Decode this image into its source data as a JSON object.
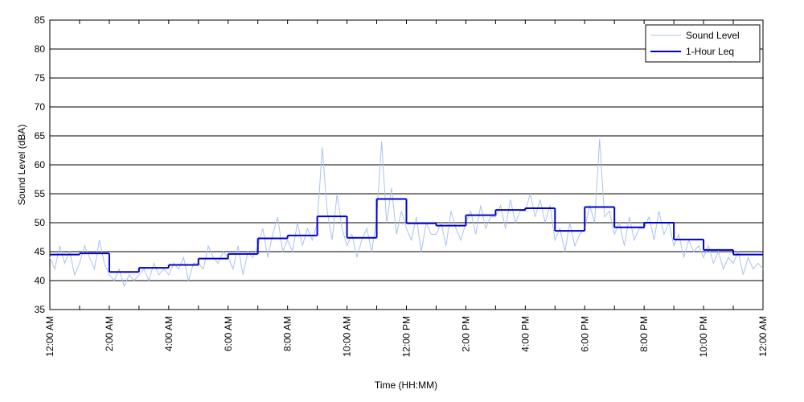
{
  "chart_data": {
    "type": "line",
    "xlabel": "Time (HH:MM)",
    "ylabel": "Sound Level (dBA)",
    "xlim": [
      0,
      1440
    ],
    "ylim": [
      35,
      85
    ],
    "yticks": [
      35,
      40,
      45,
      50,
      55,
      60,
      65,
      70,
      75,
      80,
      85
    ],
    "xticks": [
      {
        "value": 0,
        "label": "12:00 AM"
      },
      {
        "value": 120,
        "label": "2:00 AM"
      },
      {
        "value": 240,
        "label": "4:00 AM"
      },
      {
        "value": 360,
        "label": "6:00 AM"
      },
      {
        "value": 480,
        "label": "8:00 AM"
      },
      {
        "value": 600,
        "label": "10:00 AM"
      },
      {
        "value": 720,
        "label": "12:00 PM"
      },
      {
        "value": 840,
        "label": "2:00 PM"
      },
      {
        "value": 960,
        "label": "4:00 PM"
      },
      {
        "value": 1080,
        "label": "6:00 PM"
      },
      {
        "value": 1200,
        "label": "8:00 PM"
      },
      {
        "value": 1320,
        "label": "10:00 PM"
      },
      {
        "value": 1440,
        "label": "12:00 AM"
      }
    ],
    "xminorticks": [
      60,
      180,
      300,
      420,
      540,
      660,
      780,
      900,
      1020,
      1140,
      1260,
      1380
    ],
    "grid": true,
    "legend": "upper right",
    "series": [
      {
        "name": "Sound Level",
        "color": "#a9c3f0",
        "width": 1,
        "x": [
          0,
          10,
          20,
          30,
          40,
          50,
          60,
          70,
          80,
          90,
          100,
          110,
          120,
          130,
          140,
          150,
          160,
          170,
          180,
          190,
          200,
          210,
          220,
          230,
          240,
          250,
          260,
          270,
          280,
          290,
          300,
          310,
          320,
          330,
          340,
          350,
          360,
          370,
          380,
          390,
          400,
          410,
          420,
          430,
          440,
          450,
          460,
          470,
          480,
          490,
          500,
          510,
          520,
          530,
          540,
          550,
          560,
          570,
          580,
          590,
          600,
          610,
          620,
          630,
          640,
          650,
          660,
          670,
          680,
          690,
          700,
          710,
          720,
          730,
          740,
          750,
          760,
          770,
          780,
          790,
          800,
          810,
          820,
          830,
          840,
          850,
          860,
          870,
          880,
          890,
          900,
          910,
          920,
          930,
          940,
          950,
          960,
          970,
          980,
          990,
          1000,
          1010,
          1020,
          1030,
          1040,
          1050,
          1060,
          1070,
          1080,
          1090,
          1100,
          1110,
          1120,
          1130,
          1140,
          1150,
          1160,
          1170,
          1180,
          1190,
          1200,
          1210,
          1220,
          1230,
          1240,
          1250,
          1260,
          1270,
          1280,
          1290,
          1300,
          1310,
          1320,
          1330,
          1340,
          1350,
          1360,
          1370,
          1380,
          1390,
          1400,
          1410,
          1420,
          1430,
          1440
        ],
        "values": [
          44,
          42,
          46,
          43,
          45,
          41,
          43,
          46,
          44,
          42,
          47,
          43,
          41,
          40,
          42,
          39,
          41,
          40,
          41,
          42,
          40,
          43,
          41,
          42,
          41,
          43,
          42,
          44,
          40,
          43,
          43,
          42,
          46,
          44,
          43,
          45,
          44,
          42,
          46,
          41,
          45,
          44,
          46,
          49,
          44,
          48,
          51,
          45,
          47,
          45,
          50,
          46,
          49,
          47,
          50,
          63,
          52,
          47,
          55,
          49,
          46,
          48,
          44,
          47,
          49,
          45,
          51,
          64,
          50,
          56,
          48,
          52,
          49,
          47,
          51,
          45,
          50,
          48,
          48,
          50,
          46,
          52,
          49,
          47,
          50,
          52,
          48,
          53,
          49,
          51,
          51,
          53,
          49,
          54,
          50,
          52,
          52,
          55,
          51,
          54,
          50,
          53,
          47,
          49,
          45,
          50,
          46,
          48,
          49,
          53,
          50,
          64.5,
          51,
          52,
          48,
          50,
          46,
          51,
          47,
          49,
          49,
          51,
          47,
          52,
          48,
          50,
          46,
          48,
          44,
          47,
          45,
          46,
          44,
          46,
          43,
          45,
          42,
          44,
          43,
          45,
          41,
          44,
          42,
          43,
          42
        ]
      },
      {
        "name": "1-Hour Leq",
        "color": "#0000cc",
        "width": 2,
        "step": "post",
        "x": [
          0,
          60,
          120,
          180,
          240,
          300,
          360,
          420,
          480,
          540,
          600,
          660,
          720,
          780,
          840,
          900,
          960,
          1020,
          1080,
          1140,
          1200,
          1260,
          1320,
          1380
        ],
        "values": [
          44.5,
          44.7,
          41.5,
          42.2,
          42.7,
          43.8,
          44.6,
          47.3,
          47.8,
          51.1,
          47.4,
          54.1,
          49.9,
          49.5,
          51.3,
          52.2,
          52.5,
          48.6,
          52.7,
          49.2,
          50.0,
          47.1,
          45.3,
          44.5
        ]
      }
    ]
  }
}
